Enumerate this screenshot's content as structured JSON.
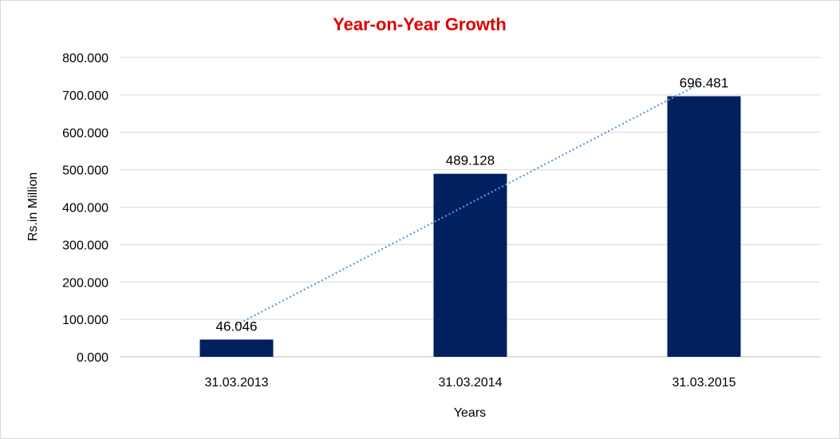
{
  "chart_data": {
    "type": "bar",
    "title": "Year-on-Year Growth",
    "xlabel": "Years",
    "ylabel": "Rs.in Million",
    "categories": [
      "31.03.2013",
      "31.03.2014",
      "31.03.2015"
    ],
    "values": [
      46.046,
      489.128,
      696.481
    ],
    "data_labels": [
      "46.046",
      "489.128",
      "696.481"
    ],
    "ylim": [
      0,
      800
    ],
    "yticks": [
      0,
      100,
      200,
      300,
      400,
      500,
      600,
      700,
      800
    ],
    "ytick_labels": [
      "0.000",
      "100.000",
      "200.000",
      "300.000",
      "400.000",
      "500.000",
      "600.000",
      "700.000",
      "800.000"
    ],
    "grid": true,
    "legend": "none",
    "trendline": "linear",
    "colors": {
      "bar": "#002060",
      "trendline": "#5b9bd5",
      "title": "#e00000",
      "grid": "#d9d9d9"
    }
  }
}
